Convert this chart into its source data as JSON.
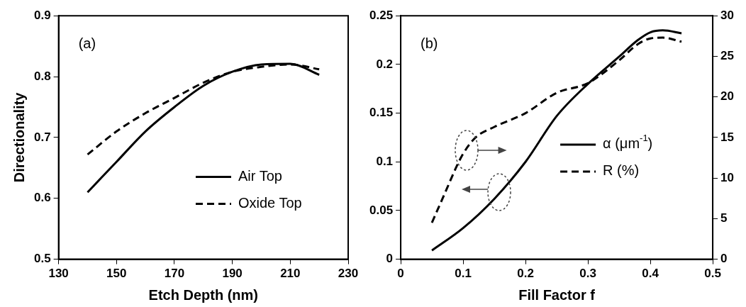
{
  "chart_data": [
    {
      "type": "line",
      "xlabel": "Etch Depth (nm)",
      "ylabel": "Directionality",
      "annotations": [
        "(a)"
      ],
      "x": [
        140,
        150,
        160,
        170,
        180,
        190,
        200,
        210,
        220
      ],
      "xlim": [
        130,
        230
      ],
      "xticks": [
        130,
        150,
        170,
        190,
        210,
        230
      ],
      "ylim": [
        0.5,
        0.9
      ],
      "yticks": [
        0.5,
        0.6,
        0.7,
        0.8,
        0.9
      ],
      "grid": false,
      "legend": "bottom right",
      "series": [
        {
          "name": "Air Top",
          "color": "#000000",
          "line_style": "solid",
          "values": [
            0.61,
            0.66,
            0.71,
            0.75,
            0.785,
            0.808,
            0.82,
            0.821,
            0.803
          ]
        },
        {
          "name": "Oxide Top",
          "color": "#000000",
          "line_style": "dashed",
          "values": [
            0.672,
            0.71,
            0.74,
            0.765,
            0.79,
            0.808,
            0.816,
            0.82,
            0.812
          ]
        }
      ]
    },
    {
      "type": "line",
      "xlabel": "Fill Factor f",
      "annotations": [
        "(b)"
      ],
      "xlim": [
        0,
        0.5
      ],
      "xticks": [
        0,
        0.1,
        0.2,
        0.3,
        0.4,
        0.5
      ],
      "ylim": [
        0,
        0.25
      ],
      "yticks": [
        0,
        0.05,
        0.1,
        0.15,
        0.2,
        0.25
      ],
      "y2lim": [
        0,
        30
      ],
      "y2ticks": [
        0,
        5,
        10,
        15,
        20,
        25,
        30
      ],
      "grid": false,
      "legend": "right",
      "series": [
        {
          "name": "α (μm$^{-1}$)",
          "color": "#000000",
          "line_style": "solid",
          "x": [
            0.05,
            0.1,
            0.15,
            0.2,
            0.25,
            0.3,
            0.35,
            0.38,
            0.4,
            0.42,
            0.45
          ],
          "values": [
            0.009,
            0.032,
            0.062,
            0.1,
            0.147,
            0.18,
            0.208,
            0.225,
            0.233,
            0.235,
            0.232
          ]
        },
        {
          "name": "R (%)",
          "color": "#000000",
          "line_style": "dashed",
          "axis": "y2",
          "x": [
            0.05,
            0.07,
            0.09,
            0.1,
            0.12,
            0.15,
            0.2,
            0.25,
            0.3,
            0.35,
            0.38,
            0.4,
            0.42,
            0.45
          ],
          "values": [
            4.5,
            8,
            11.5,
            13,
            15,
            16.3,
            18,
            20.5,
            21.7,
            24.5,
            26.5,
            27.2,
            27.3,
            26.8
          ]
        }
      ]
    }
  ]
}
